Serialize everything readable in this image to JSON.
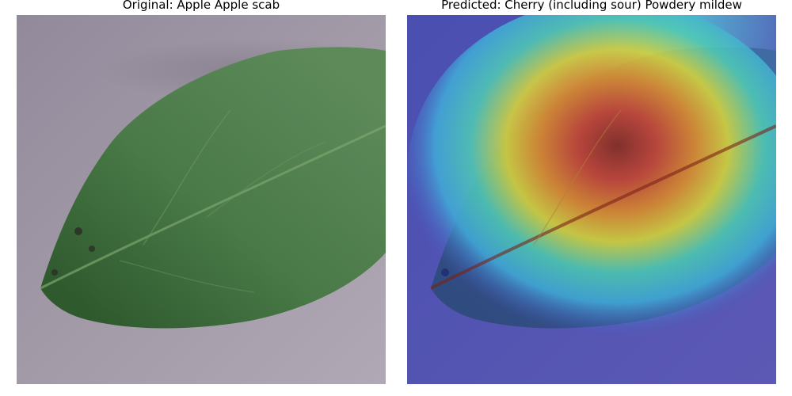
{
  "figure": {
    "panels": [
      {
        "title": "Original: Apple Apple scab",
        "image": "leaf-photo"
      },
      {
        "title": "Predicted: Cherry (including sour) Powdery mildew",
        "image": "leaf-photo-with-heatmap-overlay"
      }
    ]
  }
}
